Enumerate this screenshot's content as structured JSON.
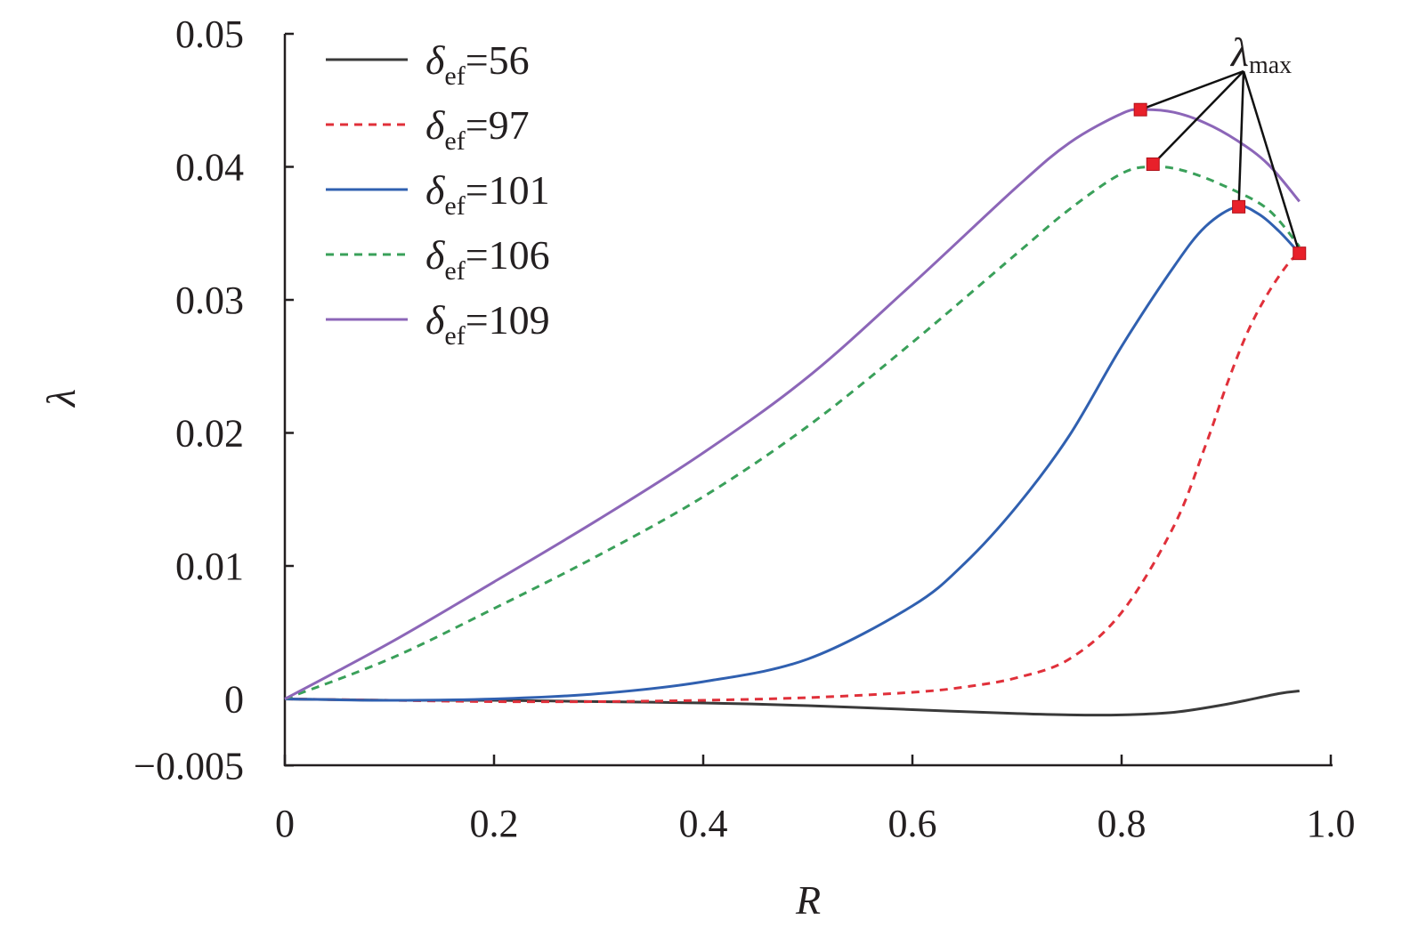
{
  "chart_data": {
    "type": "line",
    "title": "",
    "xlabel": "R",
    "ylabel": "λ",
    "xlim": [
      0,
      1.0
    ],
    "ylim": [
      -0.005,
      0.05
    ],
    "x_ticks": [
      0,
      0.2,
      0.4,
      0.6,
      0.8,
      1.0
    ],
    "x_tick_labels": [
      "0",
      "0.2",
      "0.4",
      "0.6",
      "0.8",
      "1.0"
    ],
    "y_ticks": [
      -0.005,
      0,
      0.01,
      0.02,
      0.03,
      0.04,
      0.05
    ],
    "y_tick_labels": [
      "−0.005",
      "0",
      "0.01",
      "0.02",
      "0.03",
      "0.04",
      "0.05"
    ],
    "grid": false,
    "legend_position": "top-left",
    "annotation": {
      "symbol": "λ",
      "subscript": "max",
      "text": "λmax"
    },
    "series": [
      {
        "name": "δef=56",
        "symbol": "δ",
        "subscript": "ef",
        "value_text": "=56",
        "color": "#3a3a3a",
        "dash": "solid",
        "x": [
          0,
          0.1,
          0.2,
          0.3,
          0.4,
          0.5,
          0.6,
          0.7,
          0.75,
          0.8,
          0.85,
          0.9,
          0.95,
          0.97
        ],
        "y": [
          0,
          -0.0001,
          -0.0001,
          -0.0002,
          -0.0003,
          -0.0005,
          -0.0008,
          -0.0011,
          -0.0012,
          -0.0012,
          -0.001,
          -0.0004,
          0.0004,
          0.0006
        ]
      },
      {
        "name": "δef=97",
        "symbol": "δ",
        "subscript": "ef",
        "value_text": "=97",
        "color": "#e0303a",
        "dash": "dashed",
        "x": [
          0,
          0.1,
          0.2,
          0.3,
          0.4,
          0.5,
          0.6,
          0.65,
          0.7,
          0.75,
          0.8,
          0.85,
          0.88,
          0.9,
          0.92,
          0.94,
          0.96,
          0.97
        ],
        "y": [
          0,
          -0.0001,
          -0.0002,
          -0.0002,
          -0.0001,
          0.0001,
          0.0005,
          0.0009,
          0.0016,
          0.003,
          0.0065,
          0.013,
          0.019,
          0.0235,
          0.0275,
          0.0305,
          0.0328,
          0.0335
        ],
        "max": {
          "x": 0.97,
          "y": 0.0335
        }
      },
      {
        "name": "δef=101",
        "symbol": "δ",
        "subscript": "ef",
        "value_text": "=101",
        "color": "#3060b0",
        "dash": "solid",
        "x": [
          0,
          0.1,
          0.2,
          0.3,
          0.4,
          0.5,
          0.6,
          0.65,
          0.7,
          0.75,
          0.8,
          0.85,
          0.88,
          0.91,
          0.93,
          0.95,
          0.97
        ],
        "y": [
          0,
          -0.0001,
          0,
          0.0004,
          0.0013,
          0.003,
          0.007,
          0.0102,
          0.0145,
          0.0198,
          0.0265,
          0.0325,
          0.0355,
          0.037,
          0.0365,
          0.0352,
          0.0335
        ],
        "max": {
          "x": 0.912,
          "y": 0.037
        }
      },
      {
        "name": "δef=106",
        "symbol": "δ",
        "subscript": "ef",
        "value_text": "=106",
        "color": "#3aa05a",
        "dash": "dashed",
        "x": [
          0,
          0.1,
          0.2,
          0.3,
          0.4,
          0.5,
          0.6,
          0.7,
          0.75,
          0.8,
          0.83,
          0.86,
          0.9,
          0.94,
          0.97
        ],
        "y": [
          0,
          0.003,
          0.0068,
          0.0108,
          0.0152,
          0.0205,
          0.0268,
          0.0335,
          0.0368,
          0.0395,
          0.04,
          0.0397,
          0.0385,
          0.0368,
          0.034
        ],
        "max": {
          "x": 0.83,
          "y": 0.0402
        }
      },
      {
        "name": "δef=109",
        "symbol": "δ",
        "subscript": "ef",
        "value_text": "=109",
        "color": "#8c66b8",
        "dash": "solid",
        "x": [
          0,
          0.1,
          0.2,
          0.3,
          0.4,
          0.5,
          0.6,
          0.7,
          0.75,
          0.8,
          0.82,
          0.85,
          0.88,
          0.91,
          0.94,
          0.97
        ],
        "y": [
          0,
          0.0042,
          0.0088,
          0.0135,
          0.0185,
          0.0242,
          0.0312,
          0.0385,
          0.0418,
          0.044,
          0.0443,
          0.0441,
          0.0433,
          0.042,
          0.0402,
          0.0374
        ],
        "max": {
          "x": 0.818,
          "y": 0.0443
        }
      }
    ]
  }
}
